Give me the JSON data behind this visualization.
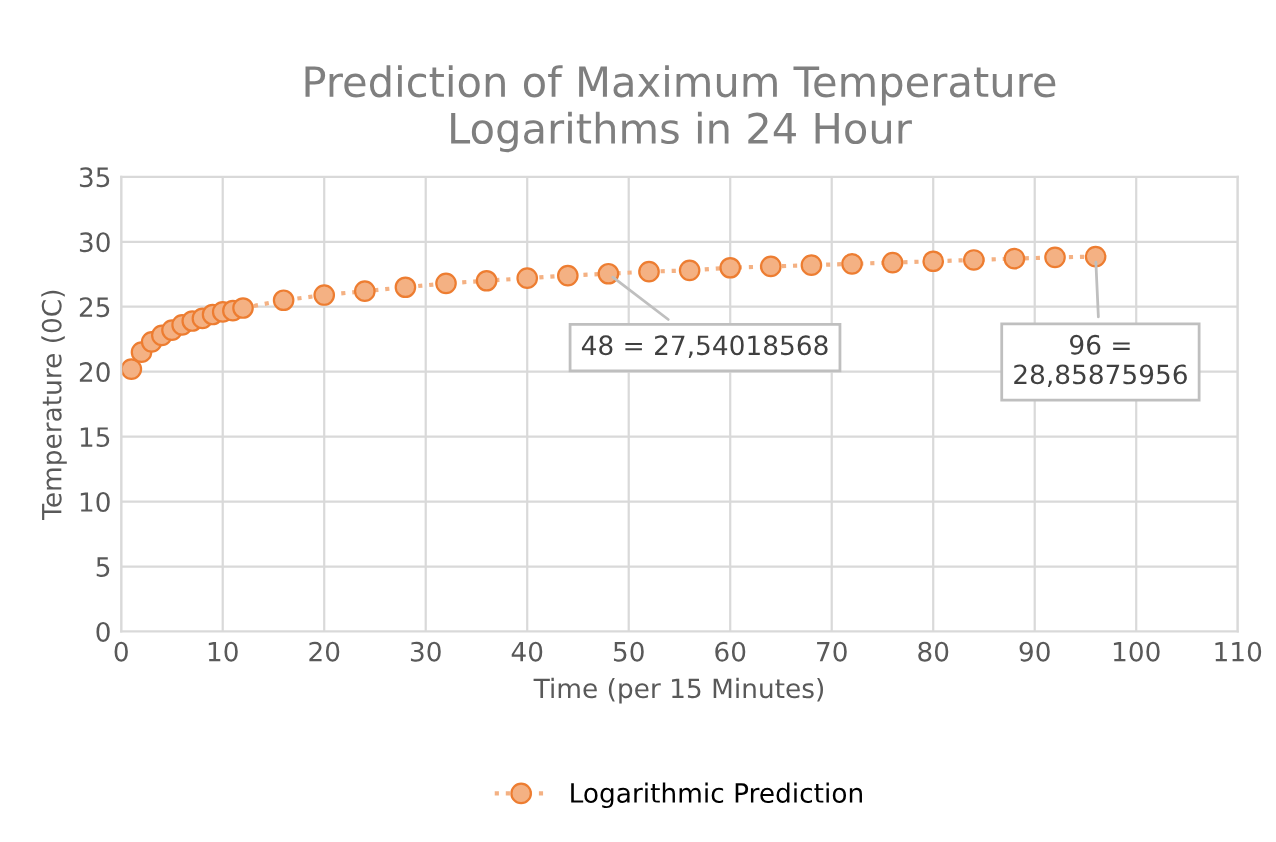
{
  "chart_data": {
    "type": "line",
    "title": "Prediction of Maximum Temperature\nLogarithms in 24 Hour",
    "xlabel": "Time (per 15 Minutes)",
    "ylabel": "Temperature (0C)",
    "x": [
      1,
      2,
      3,
      4,
      5,
      6,
      7,
      8,
      9,
      10,
      11,
      12,
      16,
      20,
      24,
      28,
      32,
      36,
      40,
      44,
      48,
      52,
      56,
      60,
      64,
      68,
      72,
      76,
      80,
      84,
      88,
      92,
      96
    ],
    "series": [
      {
        "name": "Logarithmic Prediction",
        "color": "#f4b183",
        "values": [
          20.2,
          21.5,
          22.3,
          22.8,
          23.2,
          23.6,
          23.9,
          24.1,
          24.4,
          24.6,
          24.7,
          24.9,
          25.5,
          25.9,
          26.2,
          26.5,
          26.8,
          27.0,
          27.2,
          27.4,
          27.54018568,
          27.7,
          27.8,
          28.0,
          28.1,
          28.2,
          28.3,
          28.4,
          28.5,
          28.6,
          28.7,
          28.8,
          28.85875956
        ]
      }
    ],
    "annotations": [
      {
        "text": "48 = 27,54018568",
        "x": 48,
        "y": 27.54018568
      },
      {
        "text": "96 =\n28,85875956",
        "x": 96,
        "y": 28.85875956
      }
    ],
    "xlim": [
      0,
      110
    ],
    "xticks": [
      0,
      10,
      20,
      30,
      40,
      50,
      60,
      70,
      80,
      90,
      100,
      110
    ],
    "ylim": [
      0,
      35
    ],
    "yticks": [
      0,
      5,
      10,
      15,
      20,
      25,
      30,
      35
    ],
    "grid": true,
    "legend": "bottom",
    "marker": "circle",
    "line_style": "dotted"
  }
}
